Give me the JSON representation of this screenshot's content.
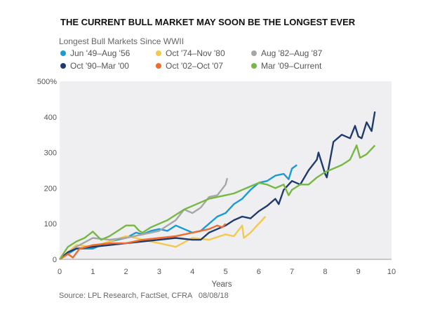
{
  "chart_data": {
    "type": "line",
    "title": "THE CURRENT BULL MARKET MAY SOON BE THE LONGEST EVER",
    "subtitle": "Longest Bull Markets Since WWII",
    "xlabel": "Years",
    "ylabel": "",
    "xlim": [
      0,
      10
    ],
    "ylim": [
      0,
      500
    ],
    "xticks": [
      "0",
      "1",
      "2",
      "3",
      "4",
      "5",
      "6",
      "7",
      "8",
      "9",
      "10"
    ],
    "yticks": [
      "0",
      "100",
      "200",
      "300",
      "400",
      "500%"
    ],
    "grid": false,
    "legend_placement": "top-left",
    "source": "Source: LPL Research, FactSet, CFRA   08/08/18",
    "plot_background": "#efeff1",
    "series": [
      {
        "name": "Jun '49–Aug '56",
        "color": "#1a9ad6",
        "x": [
          0,
          0.5,
          1,
          1.5,
          2,
          2.3,
          2.5,
          2.75,
          3,
          3.25,
          3.5,
          3.75,
          4,
          4.25,
          4.5,
          4.75,
          5,
          5.25,
          5.5,
          5.75,
          6,
          6.25,
          6.5,
          6.75,
          6.9,
          7,
          7.15
        ],
        "y": [
          0,
          30,
          30,
          50,
          60,
          75,
          70,
          80,
          85,
          80,
          95,
          85,
          75,
          80,
          100,
          120,
          130,
          155,
          170,
          195,
          215,
          220,
          235,
          240,
          225,
          255,
          265
        ]
      },
      {
        "name": "Oct '74–Nov '80",
        "color": "#f2c94c",
        "x": [
          0,
          0.5,
          1,
          1.5,
          2,
          2.3,
          2.5,
          3,
          3.5,
          4,
          4.5,
          5,
          5.25,
          5.5,
          5.55,
          5.75,
          6,
          6.2
        ],
        "y": [
          0,
          40,
          35,
          50,
          65,
          60,
          55,
          45,
          35,
          60,
          55,
          70,
          65,
          95,
          60,
          75,
          100,
          120
        ]
      },
      {
        "name": "Aug '82–Aug '87",
        "color": "#a6a6a6",
        "x": [
          0,
          0.5,
          1,
          1.5,
          2,
          2.5,
          3,
          3.5,
          3.75,
          4,
          4.25,
          4.5,
          4.75,
          5,
          5.05
        ],
        "y": [
          0,
          35,
          60,
          55,
          60,
          70,
          80,
          110,
          140,
          130,
          145,
          175,
          180,
          210,
          228
        ]
      },
      {
        "name": "Oct '90–Mar '00",
        "color": "#1f3b6e",
        "x": [
          0,
          0.25,
          0.5,
          1,
          1.5,
          2,
          2.5,
          3,
          3.5,
          4,
          4.25,
          4.5,
          4.75,
          5,
          5.25,
          5.5,
          5.75,
          6,
          6.25,
          6.5,
          6.6,
          6.75,
          7,
          7.25,
          7.5,
          7.75,
          7.8,
          8,
          8.05,
          8.25,
          8.5,
          8.75,
          8.9,
          9,
          9.1,
          9.25,
          9.4,
          9.5
        ],
        "y": [
          0,
          20,
          30,
          35,
          40,
          45,
          50,
          55,
          60,
          55,
          55,
          75,
          85,
          95,
          110,
          120,
          115,
          135,
          150,
          170,
          155,
          195,
          220,
          210,
          250,
          280,
          300,
          240,
          230,
          330,
          350,
          340,
          375,
          345,
          340,
          385,
          360,
          415
        ]
      },
      {
        "name": "Oct '02–Oct '07",
        "color": "#ef6c2b",
        "x": [
          0,
          0.25,
          0.4,
          0.6,
          1,
          1.5,
          2,
          2.5,
          3,
          3.5,
          4,
          4.5,
          4.75,
          4.9,
          5
        ],
        "y": [
          0,
          15,
          5,
          30,
          40,
          45,
          45,
          55,
          60,
          65,
          75,
          85,
          95,
          90,
          100
        ]
      },
      {
        "name": "Mar '09–Current",
        "color": "#76b843",
        "x": [
          0,
          0.25,
          0.5,
          0.75,
          1,
          1.25,
          1.5,
          1.75,
          2,
          2.25,
          2.4,
          2.5,
          2.75,
          3,
          3.25,
          3.5,
          3.75,
          4,
          4.25,
          4.5,
          4.75,
          5,
          5.25,
          5.5,
          5.75,
          6,
          6.25,
          6.5,
          6.75,
          6.9,
          7,
          7.25,
          7.5,
          7.75,
          8,
          8.25,
          8.5,
          8.75,
          8.95,
          9.05,
          9.25,
          9.5
        ],
        "y": [
          0,
          35,
          50,
          60,
          78,
          55,
          65,
          80,
          95,
          95,
          80,
          75,
          90,
          100,
          110,
          125,
          140,
          150,
          160,
          170,
          175,
          180,
          185,
          195,
          205,
          215,
          210,
          200,
          210,
          180,
          195,
          210,
          210,
          230,
          245,
          255,
          265,
          280,
          320,
          285,
          295,
          320
        ]
      }
    ]
  }
}
